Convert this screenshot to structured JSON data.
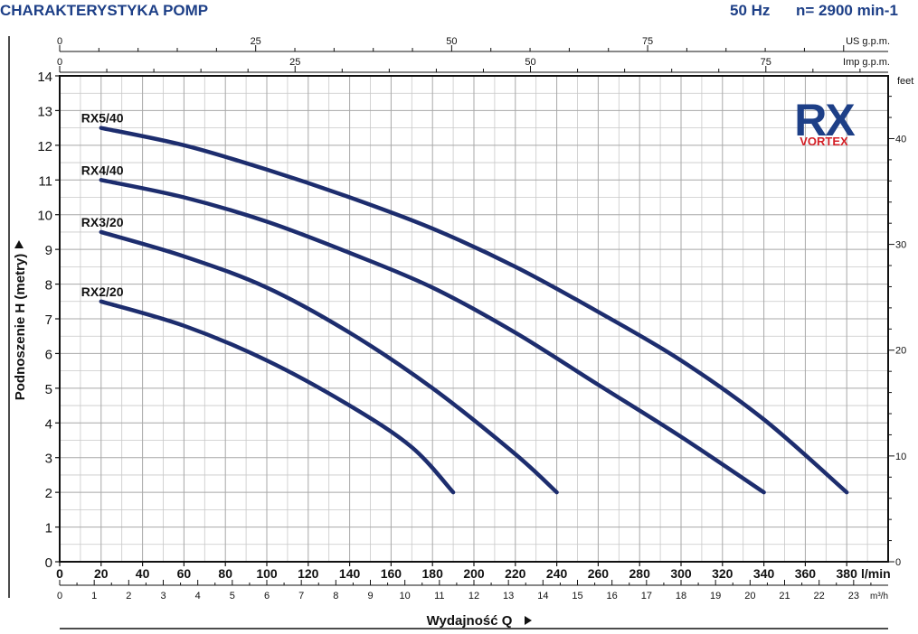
{
  "header": {
    "title": "CHARAKTERYSTYKA POMP",
    "frequency": "50 Hz",
    "speed": "n= 2900 min-1"
  },
  "logo": {
    "brand": "RX",
    "sub": "VORTEX"
  },
  "chart_data": {
    "type": "line",
    "title": "CHARAKTERYSTYKA POMP",
    "xlabel": "Wydajność Q",
    "ylabel": "Podnoszenie H  (metry)",
    "x_unit": "l/min",
    "xlim": [
      0,
      400
    ],
    "ylim": [
      0,
      14
    ],
    "grid": true,
    "x_ticks": [
      0,
      20,
      40,
      60,
      80,
      100,
      120,
      140,
      160,
      180,
      200,
      220,
      240,
      260,
      280,
      300,
      320,
      340,
      360,
      380
    ],
    "y_ticks": [
      0,
      1,
      2,
      3,
      4,
      5,
      6,
      7,
      8,
      9,
      10,
      11,
      12,
      13,
      14
    ],
    "secondary_axes": {
      "us_gpm": {
        "label": "US g.p.m.",
        "ticks": [
          0,
          25,
          50,
          75
        ]
      },
      "imp_gpm": {
        "label": "Imp g.p.m.",
        "ticks": [
          0,
          25,
          50,
          75
        ]
      },
      "m3h": {
        "label": "m³/h",
        "ticks": [
          0,
          1,
          2,
          3,
          4,
          5,
          6,
          7,
          8,
          9,
          10,
          11,
          12,
          13,
          14,
          15,
          16,
          17,
          18,
          19,
          20,
          21,
          22,
          23
        ]
      },
      "feet": {
        "label": "feet",
        "ticks": [
          0,
          10,
          20,
          30,
          40
        ]
      }
    },
    "series": [
      {
        "name": "RX5/40",
        "x": [
          20,
          60,
          100,
          140,
          180,
          220,
          260,
          300,
          340,
          380
        ],
        "y": [
          12.5,
          12.0,
          11.3,
          10.5,
          9.6,
          8.5,
          7.2,
          5.8,
          4.1,
          2.0
        ]
      },
      {
        "name": "RX4/40",
        "x": [
          20,
          60,
          100,
          140,
          180,
          220,
          260,
          300,
          340
        ],
        "y": [
          11.0,
          10.5,
          9.8,
          8.9,
          7.9,
          6.6,
          5.1,
          3.6,
          2.0
        ]
      },
      {
        "name": "RX3/20",
        "x": [
          20,
          60,
          100,
          140,
          180,
          220,
          240
        ],
        "y": [
          9.5,
          8.8,
          7.9,
          6.6,
          5.0,
          3.1,
          2.0
        ]
      },
      {
        "name": "RX2/20",
        "x": [
          20,
          60,
          100,
          140,
          170,
          190
        ],
        "y": [
          7.5,
          6.8,
          5.8,
          4.5,
          3.3,
          2.0
        ]
      }
    ],
    "line_color": "#1d2d6e"
  }
}
